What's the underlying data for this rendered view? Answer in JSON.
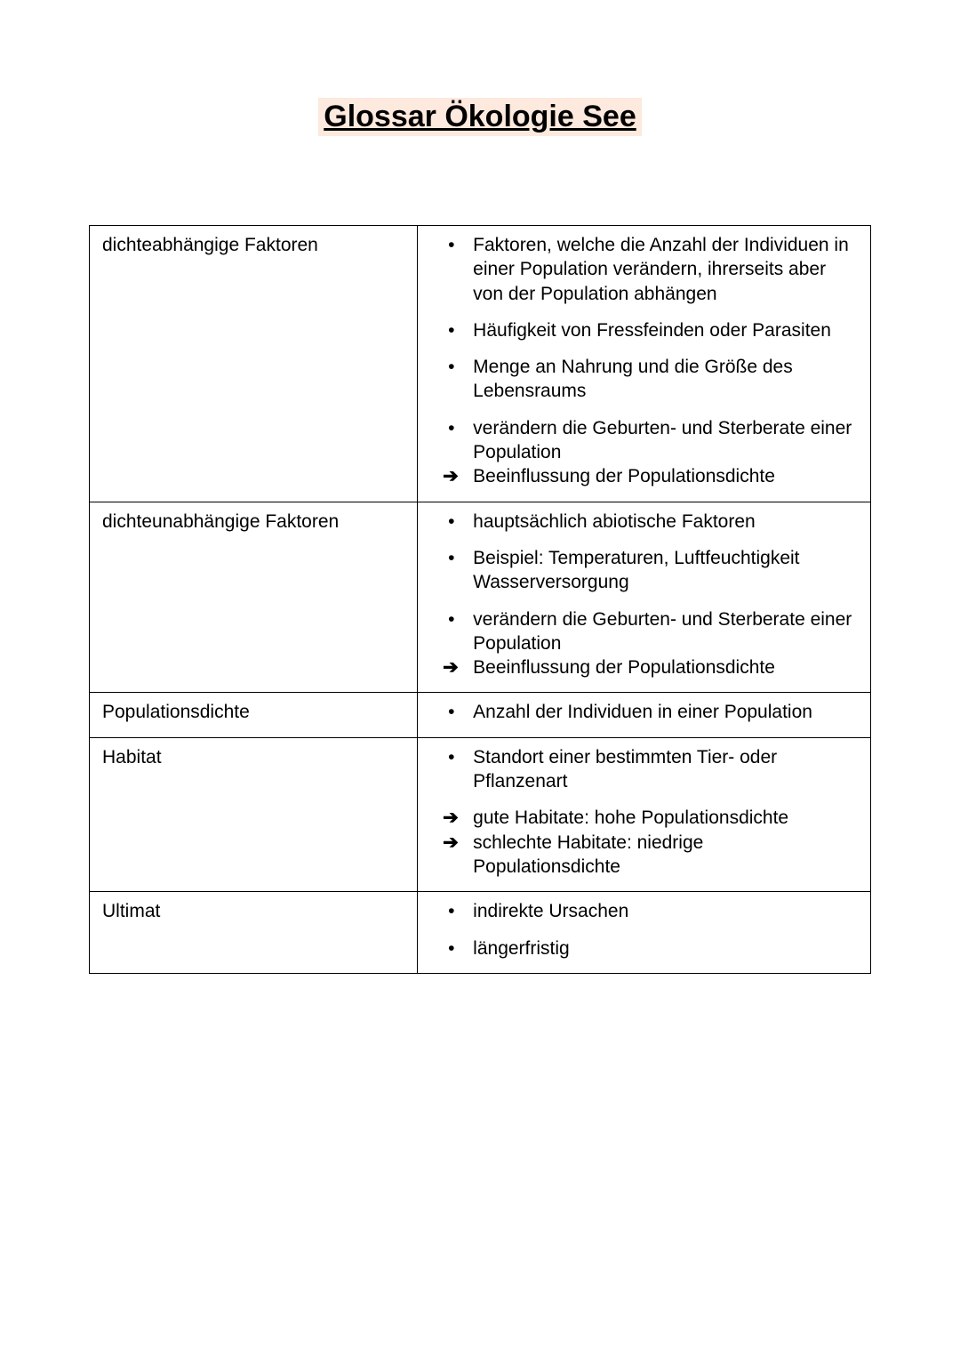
{
  "title": "Glossar Ökologie See",
  "title_highlight_color": "#fde9dd",
  "font_family": "Arial",
  "title_fontsize": 34,
  "body_fontsize": 21,
  "text_color": "#000000",
  "page_bg": "#ffffff",
  "border_color": "#000000",
  "table": {
    "columns": [
      "term",
      "definitions"
    ],
    "column_widths": [
      "42%",
      "58%"
    ],
    "rows": [
      {
        "term": "dichteabhängige Faktoren",
        "items": [
          {
            "type": "bullet",
            "text": "Faktoren, welche die Anzahl der Individuen in einer Population verändern, ihrerseits aber von der Population abhängen",
            "gap_after": true
          },
          {
            "type": "bullet",
            "text": "Häufigkeit von Fressfeinden oder Parasiten",
            "gap_after": true
          },
          {
            "type": "bullet",
            "text": "Menge an Nahrung und die Größe des Lebensraums",
            "gap_after": true
          },
          {
            "type": "bullet",
            "text": "verändern die Geburten- und Sterberate einer Population",
            "gap_after": false
          },
          {
            "type": "arrow",
            "text": "Beeinflussung der Populationsdichte",
            "gap_after": true
          }
        ]
      },
      {
        "term": "dichteunabhängige Faktoren",
        "items": [
          {
            "type": "bullet",
            "text": "hauptsächlich abiotische Faktoren",
            "gap_after": true
          },
          {
            "type": "bullet",
            "text": "Beispiel: Temperaturen, Luftfeuchtigkeit Wasserversorgung",
            "gap_after": true
          },
          {
            "type": "bullet",
            "text": "verändern die Geburten- und Sterberate einer Population",
            "gap_after": false
          },
          {
            "type": "arrow",
            "text": "Beeinflussung der Populationsdichte",
            "gap_after": true
          }
        ]
      },
      {
        "term": "Populationsdichte",
        "items": [
          {
            "type": "bullet",
            "text": "Anzahl der Individuen in einer Population",
            "gap_after": true
          }
        ]
      },
      {
        "term": "Habitat",
        "items": [
          {
            "type": "bullet",
            "text": "Standort einer bestimmten Tier- oder Pflanzenart",
            "gap_after": true
          },
          {
            "type": "arrow",
            "text": "gute Habitate: hohe Populationsdichte",
            "gap_after": false
          },
          {
            "type": "arrow",
            "text": "schlechte Habitate: niedrige Populationsdichte",
            "gap_after": true
          }
        ]
      },
      {
        "term": "Ultimat",
        "items": [
          {
            "type": "bullet",
            "text": "indirekte Ursachen",
            "gap_after": true
          },
          {
            "type": "bullet",
            "text": "längerfristig",
            "gap_after": false
          }
        ]
      }
    ]
  }
}
